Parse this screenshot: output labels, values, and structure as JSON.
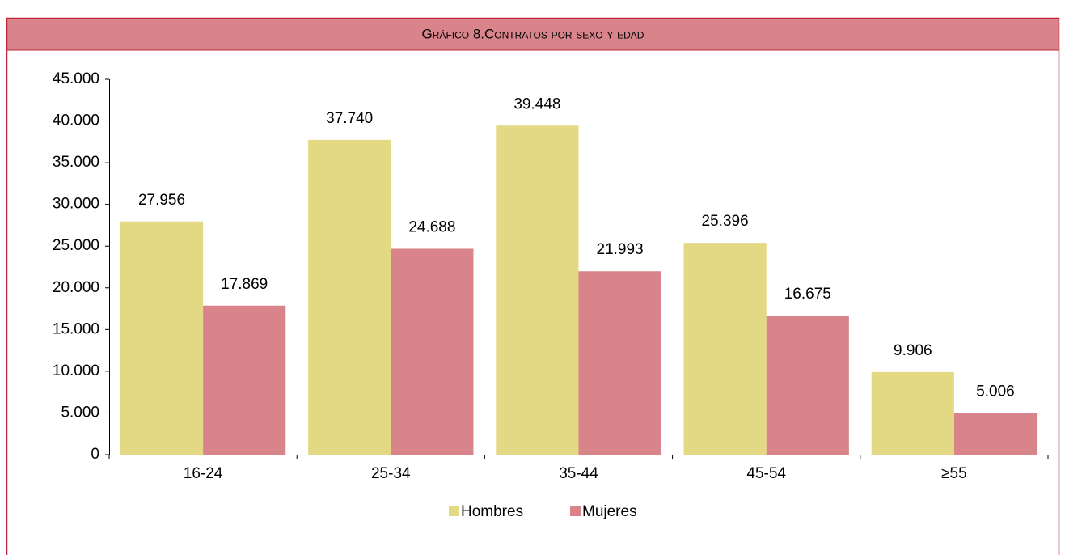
{
  "chart_data": {
    "type": "bar",
    "title": "Gráfico 8.Contratos por sexo y edad",
    "categories": [
      "16-24",
      "25-34",
      "35-44",
      "45-54",
      "≥55"
    ],
    "series": [
      {
        "name": "Hombres",
        "color": "#e3d883",
        "values": [
          27956,
          37740,
          39448,
          25396,
          9906
        ],
        "value_labels": [
          "27.956",
          "37.740",
          "39.448",
          "25.396",
          "9.906"
        ]
      },
      {
        "name": "Mujeres",
        "color": "#d9848b",
        "values": [
          17869,
          24688,
          21993,
          16675,
          5006
        ],
        "value_labels": [
          "17.869",
          "24.688",
          "21.993",
          "16.675",
          "5.006"
        ]
      }
    ],
    "ylim": [
      0,
      45000
    ],
    "yticks": [
      0,
      {
        "value": 5000,
        "label": "5.000"
      },
      {
        "value": 10000,
        "label": "10.000"
      },
      {
        "value": 15000,
        "label": "15.000"
      },
      {
        "value": 20000,
        "label": "20.000"
      },
      {
        "value": 25000,
        "label": "25.000"
      },
      {
        "value": 30000,
        "label": "30.000"
      },
      {
        "value": 35000,
        "label": "35.000"
      },
      {
        "value": 40000,
        "label": "40.000"
      },
      {
        "value": 45000,
        "label": "45.000"
      }
    ],
    "grid": false,
    "legend": "bottom"
  }
}
